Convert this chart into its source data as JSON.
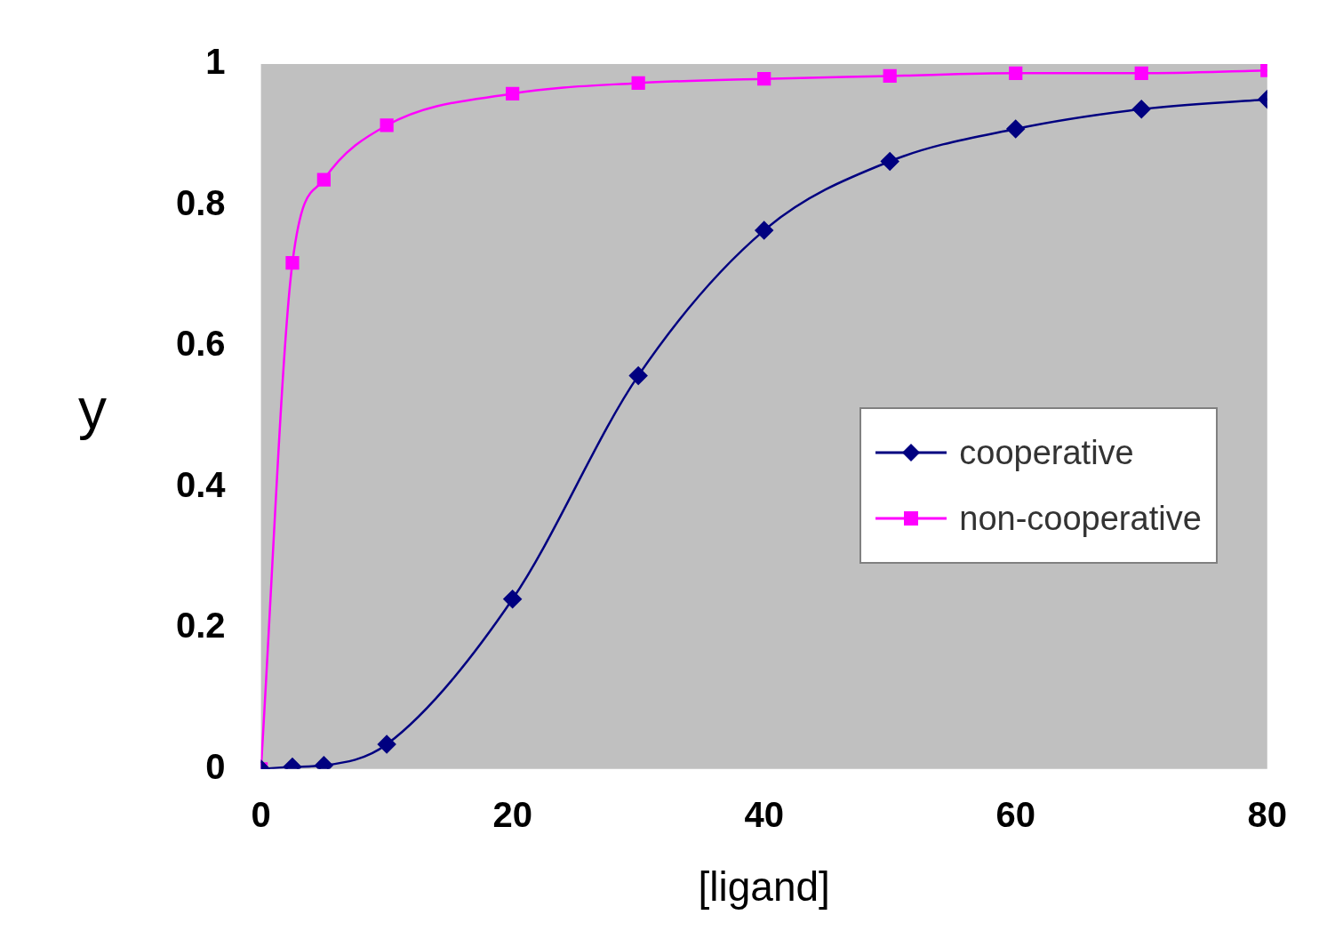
{
  "chart_data": {
    "type": "line",
    "xlabel": "[ligand]",
    "ylabel": "y",
    "xlim": [
      0,
      80
    ],
    "xticks": [
      0,
      20,
      40,
      60,
      80
    ],
    "ylim": [
      0,
      1
    ],
    "yticks": [
      0,
      0.2,
      0.4,
      0.6,
      0.8,
      1
    ],
    "grid": false,
    "legend": "right",
    "line_style": "solid",
    "series": [
      {
        "name": "cooperative",
        "color": "#000080",
        "marker": "diamond",
        "x": [
          0,
          2.5,
          5,
          10,
          20,
          30,
          40,
          50,
          60,
          70,
          80
        ],
        "values": [
          0,
          0.003,
          0.005,
          0.035,
          0.241,
          0.558,
          0.764,
          0.862,
          0.908,
          0.936,
          0.95
        ]
      },
      {
        "name": "non-cooperative",
        "color": "#ff00ff",
        "marker": "square",
        "x": [
          0,
          2.5,
          5,
          10,
          20,
          30,
          40,
          50,
          60,
          70,
          80
        ],
        "values": [
          0,
          0.718,
          0.836,
          0.913,
          0.958,
          0.973,
          0.979,
          0.983,
          0.987,
          0.987,
          0.991
        ]
      }
    ]
  }
}
